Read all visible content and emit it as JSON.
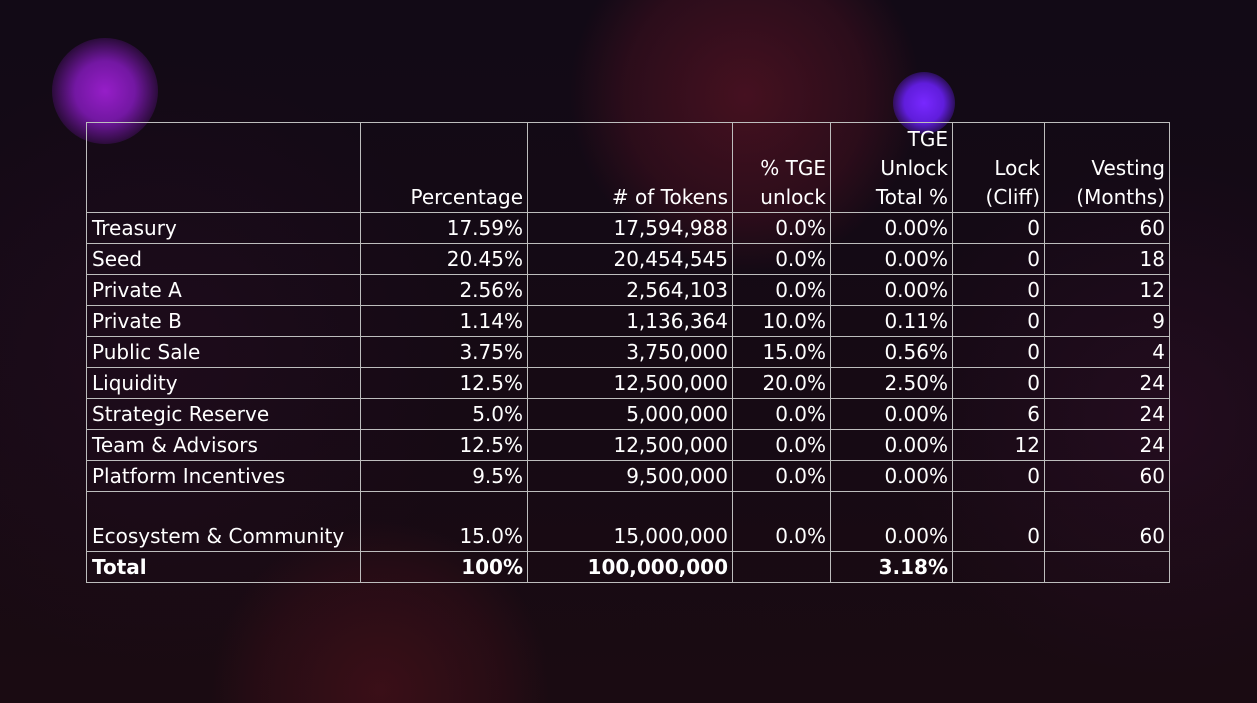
{
  "table": {
    "headers": [
      "",
      "Percentage",
      "# of Tokens",
      "% TGE unlock",
      "TGE Unlock Total %",
      "Lock (Cliff)",
      "Vesting (Months)"
    ],
    "rows": [
      [
        "Treasury",
        "17.59%",
        "17,594,988",
        "0.0%",
        "0.00%",
        "0",
        "60"
      ],
      [
        "Seed",
        "20.45%",
        "20,454,545",
        "0.0%",
        "0.00%",
        "0",
        "18"
      ],
      [
        "Private A",
        "2.56%",
        "2,564,103",
        "0.0%",
        "0.00%",
        "0",
        "12"
      ],
      [
        "Private B",
        "1.14%",
        "1,136,364",
        "10.0%",
        "0.11%",
        "0",
        "9"
      ],
      [
        "Public Sale",
        "3.75%",
        "3,750,000",
        "15.0%",
        "0.56%",
        "0",
        "4"
      ],
      [
        "Liquidity",
        "12.5%",
        "12,500,000",
        "20.0%",
        "2.50%",
        "0",
        "24"
      ],
      [
        "Strategic Reserve",
        "5.0%",
        "5,000,000",
        "0.0%",
        "0.00%",
        "6",
        "24"
      ],
      [
        "Team & Advisors",
        "12.5%",
        "12,500,000",
        "0.0%",
        "0.00%",
        "12",
        "24"
      ],
      [
        "Platform Incentives",
        "9.5%",
        "9,500,000",
        "0.0%",
        "0.00%",
        "0",
        "60"
      ],
      [
        "Ecosystem & Community",
        "15.0%",
        "15,000,000",
        "0.0%",
        "0.00%",
        "0",
        "60"
      ]
    ],
    "total": [
      "Total",
      "100%",
      "100,000,000",
      "",
      "3.18%",
      "",
      ""
    ]
  }
}
